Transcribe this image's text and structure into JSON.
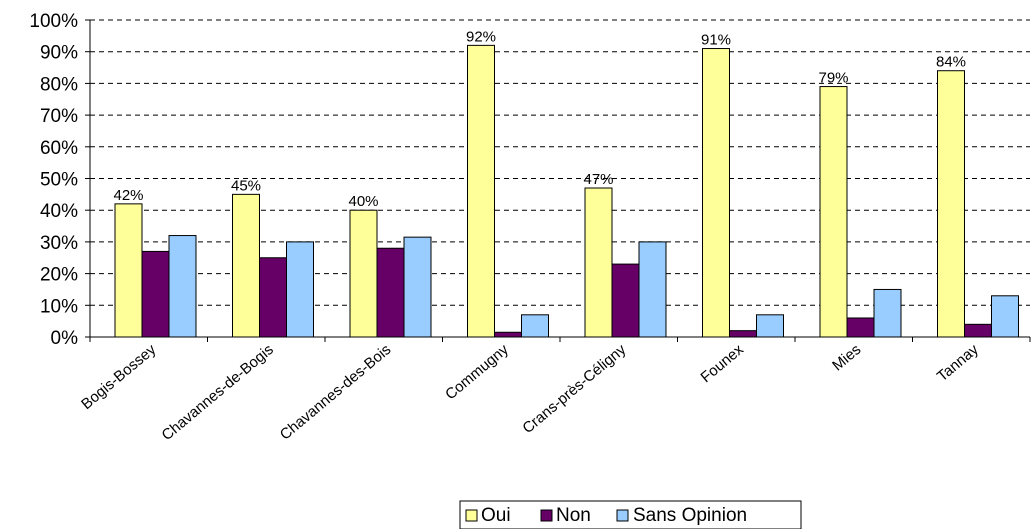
{
  "chart_data": {
    "type": "bar",
    "categories": [
      "Bogis-Bossey",
      "Chavannes-de-Bogis",
      "Chavannes-des-Bois",
      "Commugny",
      "Crans-près-Céligny",
      "Founex",
      "Mies",
      "Tannay"
    ],
    "series": [
      {
        "name": "Oui",
        "color": "#FFFF99",
        "values": [
          42,
          45,
          40,
          92,
          47,
          91,
          79,
          84
        ]
      },
      {
        "name": "Non",
        "color": "#660066",
        "values": [
          27,
          25,
          28,
          1.5,
          23,
          2,
          6,
          4
        ]
      },
      {
        "name": "Sans Opinion",
        "color": "#99CCFF",
        "values": [
          32,
          30,
          31.5,
          7,
          30,
          7,
          15,
          13
        ]
      }
    ],
    "data_labels": [
      "42%",
      "45%",
      "40%",
      "92%",
      "47%",
      "91%",
      "79%",
      "84%"
    ],
    "y_ticks": [
      "0%",
      "10%",
      "20%",
      "30%",
      "40%",
      "50%",
      "60%",
      "70%",
      "80%",
      "90%",
      "100%"
    ],
    "ylim": [
      0,
      100
    ],
    "grid": true,
    "legend_position": "bottom"
  }
}
